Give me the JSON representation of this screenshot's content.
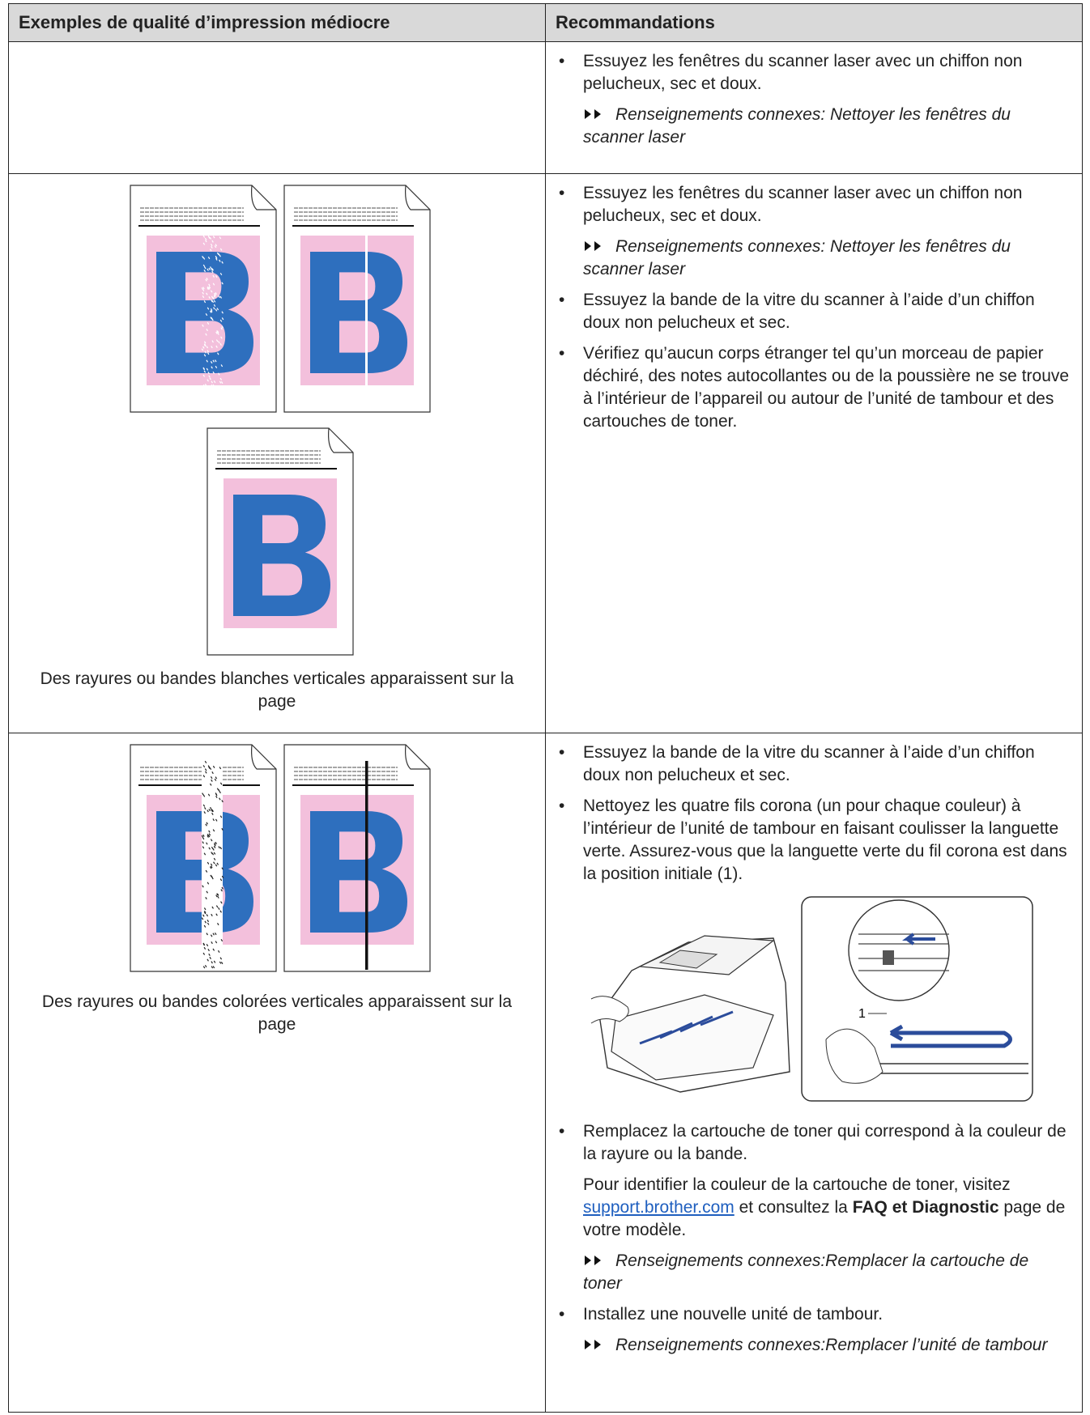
{
  "table": {
    "header": [
      "Exemples de qualité d’impression médiocre",
      "Recommandations"
    ],
    "rows": [
      {
        "caption": null,
        "items": [
          {
            "bullet": "Essuyez les fenêtres du scanner laser avec un chiffon non pelucheux, sec et doux."
          },
          {
            "related": {
              "label": "Renseignements connexes",
              "target": ": Nettoyer les fenêtres du scanner laser"
            }
          }
        ]
      },
      {
        "caption": "Des rayures ou bandes blanches verticales apparaissent sur la page",
        "items": [
          {
            "bullet": "Essuyez les fenêtres du scanner laser avec un chiffon non pelucheux, sec et doux."
          },
          {
            "related": {
              "label": "Renseignements connexes",
              "target": ": Nettoyer les fenêtres du scanner laser"
            }
          },
          {
            "bullet": "Essuyez la bande de la vitre du scanner à l’aide d’un chiffon doux non pelucheux et sec."
          },
          {
            "bullet": "Vérifiez qu’aucun corps étranger tel qu’un morceau de papier déchiré, des notes autocollantes ou de la poussière ne se trouve à l’intérieur de l’appareil ou autour de l’unité de tambour et des cartouches de toner."
          }
        ]
      },
      {
        "caption": "Des rayures ou bandes colorées verticales apparaissent sur la page",
        "items": [
          {
            "bullet": "Essuyez la bande de la vitre du scanner à l’aide d’un chiffon doux non pelucheux et sec."
          },
          {
            "bullet": "Nettoyez les quatre fils corona (un pour chaque couleur) à l’intérieur de l’unité de tambour en faisant coulisser la languette verte. Assurez-vous que la languette verte du fil corona est dans la position initiale (1)."
          },
          {
            "figure_callout": "1"
          },
          {
            "bullet": "Remplacez la cartouche de toner qui correspond à la couleur de la rayure ou la bande."
          },
          {
            "paragraph": [
              {
                "text": "Pour identifier la couleur de la cartouche de toner, visitez "
              },
              {
                "link": "support.brother.com"
              },
              {
                "text": " et consultez la "
              },
              {
                "bold": "FAQ et Diagnostic"
              },
              {
                "text": " page de votre modèle."
              }
            ]
          },
          {
            "related": {
              "label": "Renseignements connexes",
              "target": ":Remplacer la cartouche de toner"
            }
          },
          {
            "bullet": "Installez une nouvelle unité de tambour."
          },
          {
            "related": {
              "label": "Renseignements connexes",
              "target": ":Remplacer l’unité de tambour"
            }
          }
        ]
      }
    ]
  }
}
